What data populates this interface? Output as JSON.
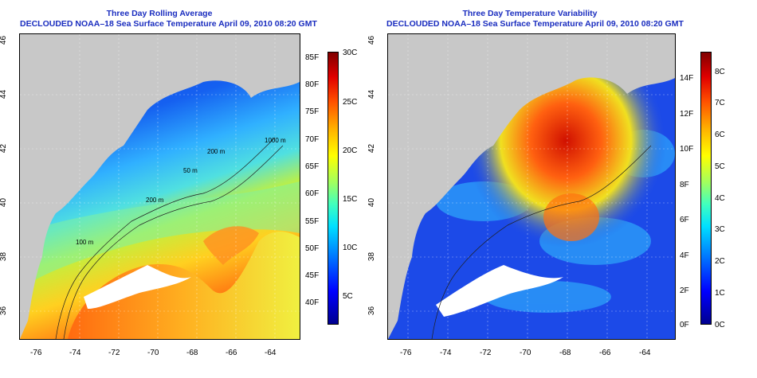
{
  "left_panel": {
    "title_line1": "Three Day Rolling Average",
    "title_line2": "DECLOUDED NOAA–18 Sea Surface Temperature April 09, 2010 08:20 GMT",
    "lon_ticks": [
      "-76",
      "-74",
      "-72",
      "-70",
      "-68",
      "-66",
      "-64"
    ],
    "lat_ticks": [
      "36",
      "38",
      "40",
      "42",
      "44",
      "46"
    ],
    "colorbar_f": [
      "85F",
      "80F",
      "75F",
      "70F",
      "65F",
      "60F",
      "55F",
      "50F",
      "45F",
      "40F"
    ],
    "colorbar_c": [
      "30C",
      "25C",
      "20C",
      "15C",
      "10C",
      "5C"
    ],
    "contour_labels": [
      "200 m",
      "1000 m",
      "200 m",
      "50 m",
      "100 m"
    ]
  },
  "right_panel": {
    "title_line1": "Three Day Temperature Variability",
    "title_line2": "DECLOUDED NOAA–18 Sea Surface Temperature April 09, 2010 08:20 GMT",
    "lon_ticks": [
      "-76",
      "-74",
      "-72",
      "-70",
      "-68",
      "-66",
      "-64"
    ],
    "lat_ticks": [
      "36",
      "38",
      "40",
      "42",
      "44",
      "46"
    ],
    "colorbar_f": [
      "14F",
      "12F",
      "10F",
      "8F",
      "6F",
      "4F",
      "2F",
      "0F"
    ],
    "colorbar_c": [
      "8C",
      "7C",
      "6C",
      "5C",
      "4C",
      "3C",
      "2C",
      "1C",
      "0C"
    ]
  },
  "colors": {
    "title": "#1a2dbf",
    "land": "#c8c8c8",
    "cold": "#1030e0",
    "warm": "#ff7a10",
    "cloud": "#ffffff"
  }
}
